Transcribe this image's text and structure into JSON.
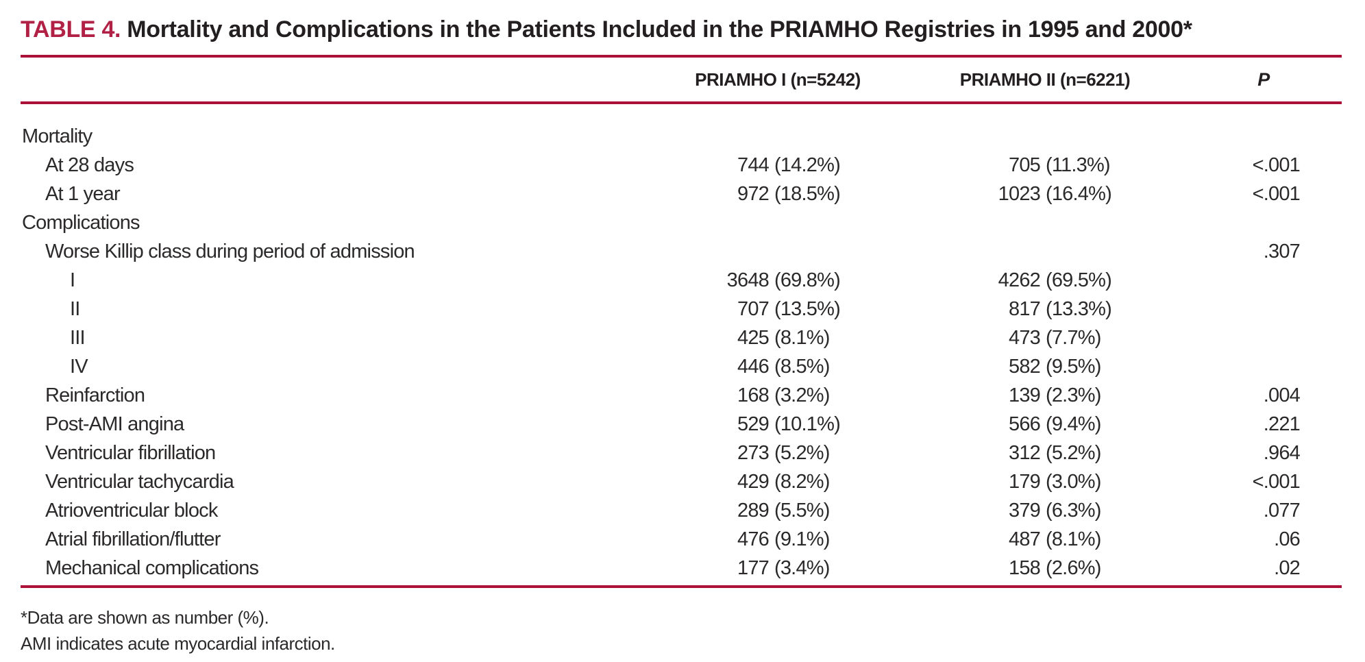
{
  "title": {
    "tag": "TABLE 4.",
    "text": "Mortality and Complications in the Patients Included in the PRIAMHO Registries in 1995 and 2000*"
  },
  "header": {
    "col1": "PRIAMHO I (n=5242)",
    "col2": "PRIAMHO II (n=6221)",
    "col3": "P"
  },
  "rows": [
    {
      "label": "Mortality"
    },
    {
      "label": "At 28 days",
      "n1": "744",
      "pct1": "(14.2%)",
      "n2": "705",
      "pct2": "(11.3%)",
      "p": "<.001"
    },
    {
      "label": "At 1 year",
      "n1": "972",
      "pct1": "(18.5%)",
      "n2": "1023",
      "pct2": "(16.4%)",
      "p": "<.001"
    },
    {
      "label": "Complications"
    },
    {
      "label": "Worse Killip class during period of admission",
      "p": ".307"
    },
    {
      "label": "I",
      "n1": "3648",
      "pct1": "(69.8%)",
      "n2": "4262",
      "pct2": "(69.5%)"
    },
    {
      "label": "II",
      "n1": "707",
      "pct1": "(13.5%)",
      "n2": "817",
      "pct2": "(13.3%)"
    },
    {
      "label": "III",
      "n1": "425",
      "pct1": "(8.1%)",
      "n2": "473",
      "pct2": "(7.7%)"
    },
    {
      "label": "IV",
      "n1": "446",
      "pct1": "(8.5%)",
      "n2": "582",
      "pct2": "(9.5%)"
    },
    {
      "label": "Reinfarction",
      "n1": "168",
      "pct1": "(3.2%)",
      "n2": "139",
      "pct2": "(2.3%)",
      "p": ".004"
    },
    {
      "label": "Post-AMI angina",
      "n1": "529",
      "pct1": "(10.1%)",
      "n2": "566",
      "pct2": "(9.4%)",
      "p": ".221"
    },
    {
      "label": "Ventricular fibrillation",
      "n1": "273",
      "pct1": "(5.2%)",
      "n2": "312",
      "pct2": "(5.2%)",
      "p": ".964"
    },
    {
      "label": "Ventricular tachycardia",
      "n1": "429",
      "pct1": "(8.2%)",
      "n2": "179",
      "pct2": "(3.0%)",
      "p": "<.001"
    },
    {
      "label": "Atrioventricular block",
      "n1": "289",
      "pct1": "(5.5%)",
      "n2": "379",
      "pct2": "(6.3%)",
      "p": ".077"
    },
    {
      "label": "Atrial fibrillation/flutter",
      "n1": "476",
      "pct1": "(9.1%)",
      "n2": "487",
      "pct2": "(8.1%)",
      "p": ".06"
    },
    {
      "label": "Mechanical complications",
      "n1": "177",
      "pct1": "(3.4%)",
      "n2": "158",
      "pct2": "(2.6%)",
      "p": ".02"
    }
  ],
  "footnotes": [
    "*Data are shown as number (%).",
    "AMI indicates acute myocardial infarction."
  ],
  "colors": {
    "accent": "#ab1038",
    "title_accent": "#b12045",
    "text": "#2b292a"
  }
}
